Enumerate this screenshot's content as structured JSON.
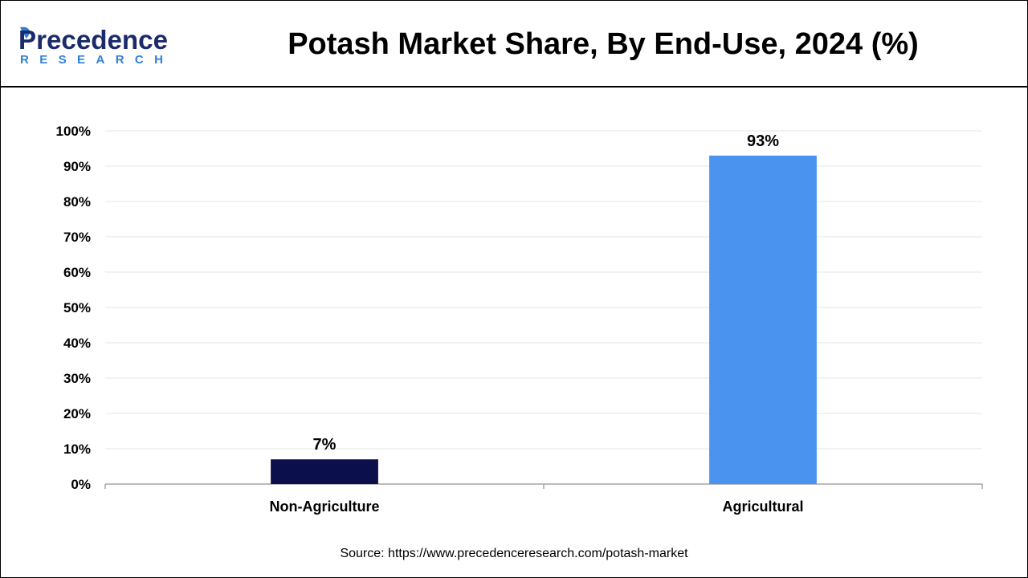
{
  "header": {
    "logo_main": "Precedence",
    "logo_sub": "RESEARCH",
    "title": "Potash Market Share, By End-Use, 2024 (%)"
  },
  "colors": {
    "logo_navy": "#1b2a6b",
    "logo_blue": "#2f80d4",
    "grid": "#e6e6e6",
    "axis": "#a6a6a6"
  },
  "chart_data": {
    "type": "bar",
    "categories": [
      "Non-Agriculture",
      "Agricultural"
    ],
    "values": [
      7,
      93
    ],
    "value_labels": [
      "7%",
      "93%"
    ],
    "bar_colors": [
      "#0b0f4c",
      "#4a93ee"
    ],
    "ylim": [
      0,
      100
    ],
    "yticks": [
      0,
      10,
      20,
      30,
      40,
      50,
      60,
      70,
      80,
      90,
      100
    ],
    "ytick_labels": [
      "0%",
      "10%",
      "20%",
      "30%",
      "40%",
      "50%",
      "60%",
      "70%",
      "80%",
      "90%",
      "100%"
    ],
    "xlabel": "",
    "ylabel": "",
    "grid": true,
    "legend": "none"
  },
  "footer": {
    "source": "Source: https://www.precedenceresearch.com/potash-market"
  }
}
